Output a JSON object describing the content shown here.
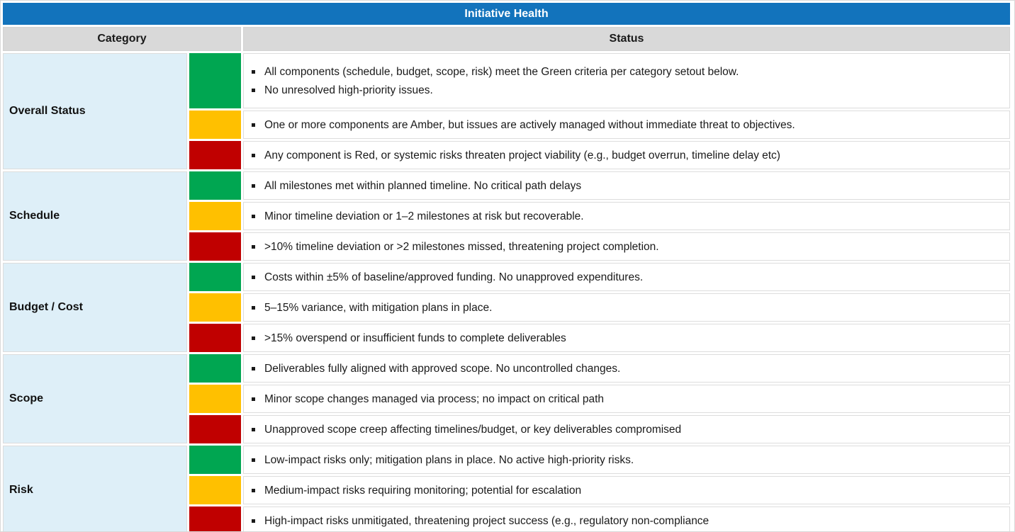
{
  "title": "Initiative Health",
  "header": {
    "category": "Category",
    "status": "Status"
  },
  "colors": {
    "title_bg": "#1273BC",
    "header_bg": "#D9D9D9",
    "category_bg": "#DEEFF8",
    "green": "#00A651",
    "amber": "#FFC000",
    "red": "#C00000"
  },
  "categories": [
    {
      "label": "Overall Status",
      "rows": [
        {
          "color": "green",
          "bullets": [
            "All components (schedule, budget, scope, risk) meet the Green criteria per category setout below.",
            "No unresolved high-priority issues."
          ]
        },
        {
          "color": "amber",
          "bullets": [
            "One or more components are Amber, but issues are actively managed without immediate threat to objectives."
          ]
        },
        {
          "color": "red",
          "bullets": [
            "Any component is Red, or systemic risks threaten project viability (e.g., budget overrun, timeline delay etc)"
          ]
        }
      ]
    },
    {
      "label": "Schedule",
      "rows": [
        {
          "color": "green",
          "bullets": [
            "All milestones met within planned timeline. No critical path delays"
          ]
        },
        {
          "color": "amber",
          "bullets": [
            "Minor timeline deviation or 1–2 milestones at risk but recoverable."
          ]
        },
        {
          "color": "red",
          "bullets": [
            ">10% timeline deviation or >2 milestones missed, threatening project completion."
          ]
        }
      ]
    },
    {
      "label": "Budget / Cost",
      "rows": [
        {
          "color": "green",
          "bullets": [
            "Costs within ±5% of baseline/approved funding. No unapproved expenditures."
          ]
        },
        {
          "color": "amber",
          "bullets": [
            "5–15% variance, with mitigation plans in place."
          ]
        },
        {
          "color": "red",
          "bullets": [
            ">15% overspend or insufficient funds to complete deliverables"
          ]
        }
      ]
    },
    {
      "label": "Scope",
      "rows": [
        {
          "color": "green",
          "bullets": [
            "Deliverables fully aligned with approved scope. No uncontrolled changes."
          ]
        },
        {
          "color": "amber",
          "bullets": [
            "Minor scope changes managed via process; no impact on critical path"
          ]
        },
        {
          "color": "red",
          "bullets": [
            "Unapproved scope creep affecting timelines/budget, or key deliverables compromised"
          ]
        }
      ]
    },
    {
      "label": "Risk",
      "rows": [
        {
          "color": "green",
          "bullets": [
            "Low-impact risks only; mitigation plans in place. No active high-priority risks."
          ]
        },
        {
          "color": "amber",
          "bullets": [
            "Medium-impact risks requiring monitoring; potential for escalation"
          ]
        },
        {
          "color": "red",
          "bullets": [
            "High-impact risks unmitigated, threatening project success (e.g., regulatory non-compliance"
          ]
        }
      ]
    }
  ]
}
